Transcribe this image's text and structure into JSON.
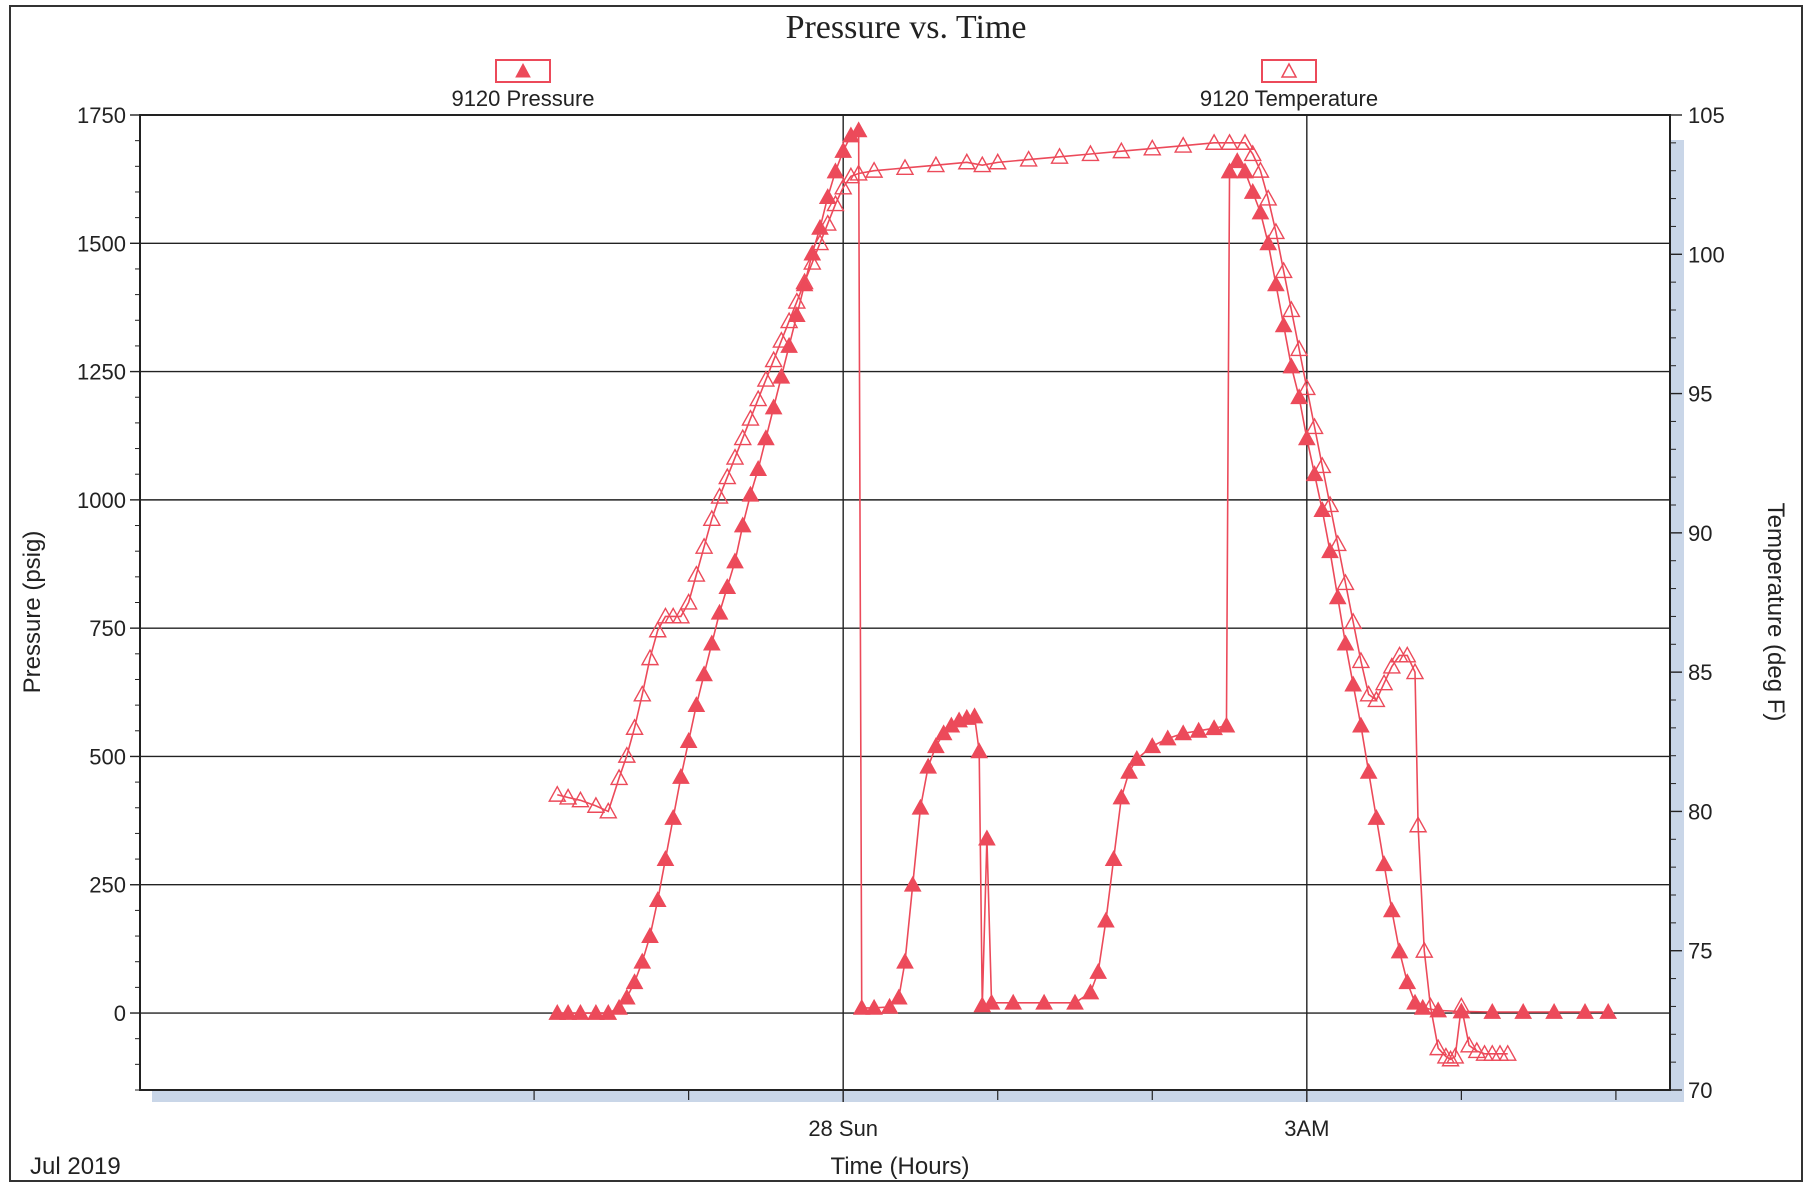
{
  "chart_data": {
    "type": "line",
    "title": "Pressure vs. Time",
    "xlabel": "Time (Hours)",
    "x_date_label": "Jul 2019",
    "x_units": "hours relative to Jul 28 00:00",
    "xlim": [
      -4.55,
      5.35
    ],
    "x_ticks": [
      {
        "x": 0,
        "label": "28 Sun"
      },
      {
        "x": 3,
        "label": "3AM"
      }
    ],
    "x_minor_ticks": [
      -2,
      -1,
      1,
      2,
      4,
      5
    ],
    "y_left": {
      "label": "Pressure (psig)",
      "lim": [
        -150,
        1750
      ],
      "ticks": [
        0,
        250,
        500,
        750,
        1000,
        1250,
        1500,
        1750
      ]
    },
    "y_right": {
      "label": "Temperature (deg F)",
      "lim": [
        70,
        105
      ],
      "ticks": [
        70,
        75,
        80,
        85,
        90,
        95,
        100,
        105
      ]
    },
    "grid": true,
    "legend_placement": "top",
    "series": [
      {
        "name": "9120 Pressure",
        "axis": "left",
        "marker": "filled-triangle",
        "color": "#ec4a5a",
        "points": [
          [
            -1.85,
            0
          ],
          [
            -1.78,
            0
          ],
          [
            -1.7,
            0
          ],
          [
            -1.6,
            0
          ],
          [
            -1.52,
            0
          ],
          [
            -1.45,
            10
          ],
          [
            -1.4,
            30
          ],
          [
            -1.35,
            60
          ],
          [
            -1.3,
            100
          ],
          [
            -1.25,
            150
          ],
          [
            -1.2,
            220
          ],
          [
            -1.15,
            300
          ],
          [
            -1.1,
            380
          ],
          [
            -1.05,
            460
          ],
          [
            -1.0,
            530
          ],
          [
            -0.95,
            600
          ],
          [
            -0.9,
            660
          ],
          [
            -0.85,
            720
          ],
          [
            -0.8,
            780
          ],
          [
            -0.75,
            830
          ],
          [
            -0.7,
            880
          ],
          [
            -0.65,
            950
          ],
          [
            -0.6,
            1010
          ],
          [
            -0.55,
            1060
          ],
          [
            -0.5,
            1120
          ],
          [
            -0.45,
            1180
          ],
          [
            -0.4,
            1240
          ],
          [
            -0.35,
            1300
          ],
          [
            -0.3,
            1360
          ],
          [
            -0.25,
            1420
          ],
          [
            -0.2,
            1480
          ],
          [
            -0.15,
            1530
          ],
          [
            -0.1,
            1590
          ],
          [
            -0.05,
            1640
          ],
          [
            0.0,
            1680
          ],
          [
            0.05,
            1710
          ],
          [
            0.1,
            1720
          ],
          [
            0.12,
            10
          ],
          [
            0.2,
            10
          ],
          [
            0.3,
            12
          ],
          [
            0.36,
            30
          ],
          [
            0.4,
            100
          ],
          [
            0.45,
            250
          ],
          [
            0.5,
            400
          ],
          [
            0.55,
            480
          ],
          [
            0.6,
            520
          ],
          [
            0.65,
            545
          ],
          [
            0.7,
            560
          ],
          [
            0.75,
            570
          ],
          [
            0.8,
            575
          ],
          [
            0.85,
            578
          ],
          [
            0.88,
            510
          ],
          [
            0.9,
            15
          ],
          [
            0.93,
            340
          ],
          [
            0.96,
            20
          ],
          [
            1.1,
            20
          ],
          [
            1.3,
            20
          ],
          [
            1.5,
            20
          ],
          [
            1.6,
            40
          ],
          [
            1.65,
            80
          ],
          [
            1.7,
            180
          ],
          [
            1.75,
            300
          ],
          [
            1.8,
            420
          ],
          [
            1.85,
            470
          ],
          [
            1.9,
            495
          ],
          [
            2.0,
            520
          ],
          [
            2.1,
            535
          ],
          [
            2.2,
            545
          ],
          [
            2.3,
            550
          ],
          [
            2.4,
            555
          ],
          [
            2.48,
            560
          ],
          [
            2.5,
            1640
          ],
          [
            2.55,
            1660
          ],
          [
            2.6,
            1640
          ],
          [
            2.65,
            1600
          ],
          [
            2.7,
            1560
          ],
          [
            2.75,
            1500
          ],
          [
            2.8,
            1420
          ],
          [
            2.85,
            1340
          ],
          [
            2.9,
            1260
          ],
          [
            2.95,
            1200
          ],
          [
            3.0,
            1120
          ],
          [
            3.05,
            1050
          ],
          [
            3.1,
            980
          ],
          [
            3.15,
            900
          ],
          [
            3.2,
            810
          ],
          [
            3.25,
            720
          ],
          [
            3.3,
            640
          ],
          [
            3.35,
            560
          ],
          [
            3.4,
            470
          ],
          [
            3.45,
            380
          ],
          [
            3.5,
            290
          ],
          [
            3.55,
            200
          ],
          [
            3.6,
            120
          ],
          [
            3.65,
            60
          ],
          [
            3.7,
            20
          ],
          [
            3.75,
            10
          ],
          [
            3.85,
            5
          ],
          [
            4.0,
            3
          ],
          [
            4.2,
            2
          ],
          [
            4.4,
            2
          ],
          [
            4.6,
            2
          ],
          [
            4.8,
            2
          ],
          [
            4.95,
            2
          ]
        ]
      },
      {
        "name": "9120 Temperature",
        "axis": "right",
        "marker": "open-triangle",
        "color": "#ec4a5a",
        "points": [
          [
            -1.85,
            80.6
          ],
          [
            -1.78,
            80.5
          ],
          [
            -1.7,
            80.4
          ],
          [
            -1.6,
            80.2
          ],
          [
            -1.52,
            80.0
          ],
          [
            -1.45,
            81.2
          ],
          [
            -1.4,
            82.0
          ],
          [
            -1.35,
            83.0
          ],
          [
            -1.3,
            84.2
          ],
          [
            -1.25,
            85.5
          ],
          [
            -1.2,
            86.5
          ],
          [
            -1.15,
            87.0
          ],
          [
            -1.1,
            87.0
          ],
          [
            -1.05,
            87.0
          ],
          [
            -1.0,
            87.5
          ],
          [
            -0.95,
            88.5
          ],
          [
            -0.9,
            89.5
          ],
          [
            -0.85,
            90.5
          ],
          [
            -0.8,
            91.3
          ],
          [
            -0.75,
            92.0
          ],
          [
            -0.7,
            92.7
          ],
          [
            -0.65,
            93.4
          ],
          [
            -0.6,
            94.1
          ],
          [
            -0.55,
            94.8
          ],
          [
            -0.5,
            95.5
          ],
          [
            -0.45,
            96.2
          ],
          [
            -0.4,
            96.9
          ],
          [
            -0.35,
            97.6
          ],
          [
            -0.3,
            98.3
          ],
          [
            -0.25,
            99.0
          ],
          [
            -0.2,
            99.7
          ],
          [
            -0.15,
            100.4
          ],
          [
            -0.1,
            101.1
          ],
          [
            -0.05,
            101.8
          ],
          [
            0.0,
            102.4
          ],
          [
            0.05,
            102.8
          ],
          [
            0.1,
            102.9
          ],
          [
            0.2,
            103.0
          ],
          [
            0.4,
            103.1
          ],
          [
            0.6,
            103.2
          ],
          [
            0.8,
            103.3
          ],
          [
            0.9,
            103.2
          ],
          [
            1.0,
            103.3
          ],
          [
            1.2,
            103.4
          ],
          [
            1.4,
            103.5
          ],
          [
            1.6,
            103.6
          ],
          [
            1.8,
            103.7
          ],
          [
            2.0,
            103.8
          ],
          [
            2.2,
            103.9
          ],
          [
            2.4,
            104.0
          ],
          [
            2.5,
            104.0
          ],
          [
            2.6,
            104.0
          ],
          [
            2.65,
            103.6
          ],
          [
            2.7,
            103.0
          ],
          [
            2.75,
            102.0
          ],
          [
            2.8,
            100.8
          ],
          [
            2.85,
            99.4
          ],
          [
            2.9,
            98.0
          ],
          [
            2.95,
            96.6
          ],
          [
            3.0,
            95.2
          ],
          [
            3.05,
            93.8
          ],
          [
            3.1,
            92.4
          ],
          [
            3.15,
            91.0
          ],
          [
            3.2,
            89.6
          ],
          [
            3.25,
            88.2
          ],
          [
            3.3,
            86.8
          ],
          [
            3.35,
            85.4
          ],
          [
            3.4,
            84.2
          ],
          [
            3.45,
            84.0
          ],
          [
            3.5,
            84.6
          ],
          [
            3.55,
            85.2
          ],
          [
            3.6,
            85.6
          ],
          [
            3.65,
            85.6
          ],
          [
            3.7,
            85.0
          ],
          [
            3.72,
            79.5
          ],
          [
            3.76,
            75.0
          ],
          [
            3.8,
            73.0
          ],
          [
            3.85,
            71.5
          ],
          [
            3.9,
            71.2
          ],
          [
            3.93,
            71.1
          ],
          [
            3.96,
            71.2
          ],
          [
            4.0,
            73.0
          ],
          [
            4.05,
            71.6
          ],
          [
            4.1,
            71.4
          ],
          [
            4.15,
            71.3
          ],
          [
            4.2,
            71.3
          ],
          [
            4.25,
            71.3
          ],
          [
            4.3,
            71.3
          ]
        ]
      }
    ]
  }
}
